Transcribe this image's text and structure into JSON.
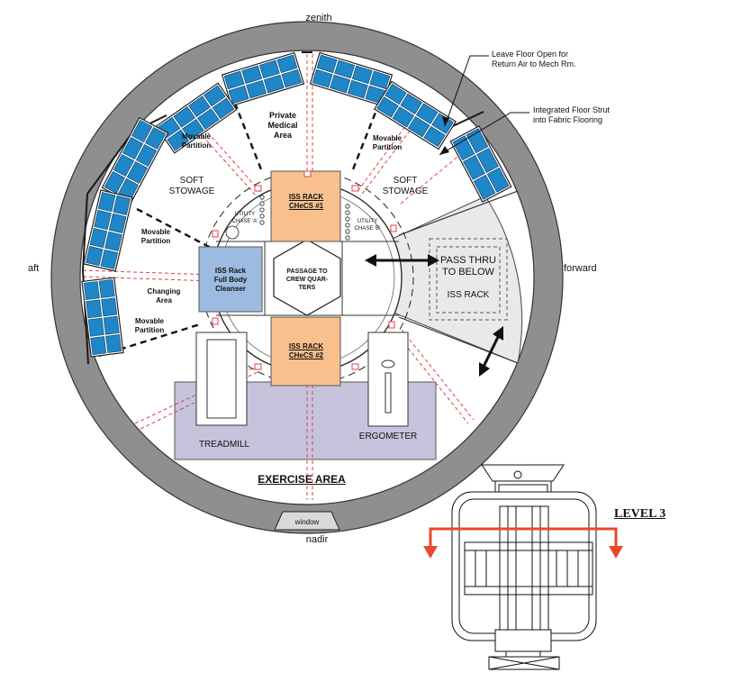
{
  "orientation": {
    "zenith": "zenith",
    "nadir": "nadir",
    "aft": "aft",
    "forward": "forward"
  },
  "callouts": {
    "floor_open": "Leave Floor Open for\nReturn Air to Mech Rm.",
    "floor_strut": "Integrated Floor Strut\ninto Fabric Flooring"
  },
  "areas": {
    "private_medical": "Private\nMedical\nArea",
    "movable_partition": "Movable\nPartition",
    "soft_stowage": "SOFT\nSTOWAGE",
    "changing_area": "Changing\nArea",
    "exercise_area": "EXERCISE AREA",
    "passage": "PASSAGE TO\nCREW QUAR-\nTERS",
    "utility_a": "UTILITY\nCHASE 'A'",
    "utility_b": "UTILITY\nCHASE 'B'",
    "pass_thru": "PASS THRU\nTO BELOW",
    "iss_rack_label": "ISS RACK",
    "treadmill": "TREADMILL",
    "ergometer": "ERGOMETER",
    "window": "window"
  },
  "racks": {
    "checs1": "ISS RACK\nCHeCS #1",
    "checs2": "ISS RACK\nCHeCS #2",
    "full_body_cleanser": "ISS Rack\nFull Body\nCleanser"
  },
  "level_label": "LEVEL 3",
  "colors": {
    "solar_blue": "#1f86c8",
    "rack_orange": "#f8c08d",
    "rack_blue": "#9dbbe0",
    "exercise_lavender": "#c6c3dd",
    "shell_gray": "#8f8f8f",
    "pass_gray": "#e9e9e9",
    "dash_red": "#e0414b",
    "level_arrow": "#e8492a"
  }
}
